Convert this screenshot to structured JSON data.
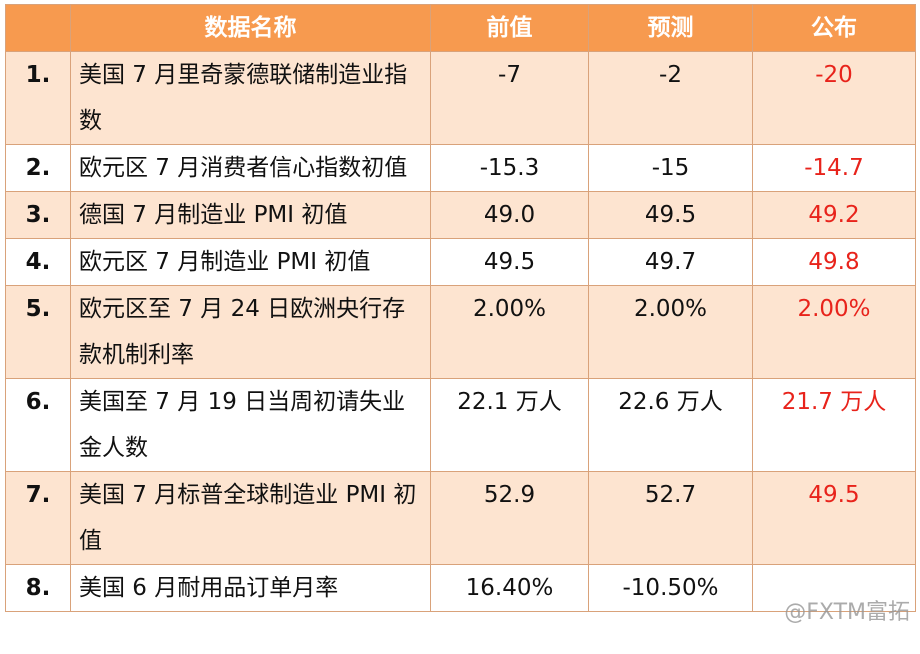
{
  "table": {
    "header": [
      "数据名称",
      "前值",
      "预测",
      "公布"
    ],
    "rows": [
      {
        "no": "1.",
        "name": "美国 7 月里奇蒙德联储制造业指数",
        "prev": "-7",
        "forecast": "-2",
        "actual": "-20"
      },
      {
        "no": "2.",
        "name": "欧元区 7 月消费者信心指数初值",
        "prev": "-15.3",
        "forecast": "-15",
        "actual": "-14.7"
      },
      {
        "no": "3.",
        "name": "德国 7 月制造业 PMI 初值",
        "prev": "49.0",
        "forecast": "49.5",
        "actual": "49.2"
      },
      {
        "no": "4.",
        "name": "欧元区 7 月制造业 PMI 初值",
        "prev": "49.5",
        "forecast": "49.7",
        "actual": "49.8"
      },
      {
        "no": "5.",
        "name": "欧元区至 7 月 24 日欧洲央行存款机制利率",
        "prev": "2.00%",
        "forecast": "2.00%",
        "actual": "2.00%"
      },
      {
        "no": "6.",
        "name": "美国至 7 月 19 日当周初请失业金人数",
        "prev": "22.1 万人",
        "forecast": "22.6 万人",
        "actual": "21.7 万人"
      },
      {
        "no": "7.",
        "name": "美国 7 月标普全球制造业 PMI 初值",
        "prev": "52.9",
        "forecast": "52.7",
        "actual": "49.5"
      },
      {
        "no": "8.",
        "name": "美国 6 月耐用品订单月率",
        "prev": "16.40%",
        "forecast": "-10.50%"
      }
    ]
  },
  "watermark": "@FXTM富拓"
}
